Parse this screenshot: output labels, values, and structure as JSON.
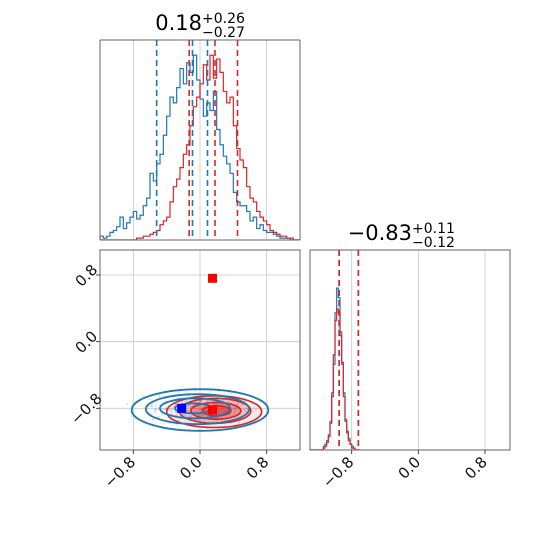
{
  "chart_data": {
    "type": "corner",
    "colors": {
      "blue": "#1f77b4",
      "red": "#d62728",
      "marker_blue": "#0000ff",
      "marker_red": "#ff0000"
    },
    "param_ranges": {
      "x": [
        -1.2,
        1.2
      ],
      "y": [
        -1.3,
        1.1
      ]
    },
    "panels": [
      {
        "id": "hist-x",
        "type": "histogram",
        "title": {
          "median": "0.18",
          "upper": "+0.26",
          "lower": "−0.27"
        },
        "xlim": [
          -1.2,
          1.2
        ],
        "ylim": [
          0,
          1.05
        ],
        "grid": true,
        "bins": {
          "start": -1.2,
          "step": 0.04
        },
        "series": [
          {
            "color": "blue",
            "values": [
              0.02,
              0.01,
              0.02,
              0.04,
              0.05,
              0.07,
              0.12,
              0.06,
              0.09,
              0.12,
              0.15,
              0.11,
              0.13,
              0.18,
              0.22,
              0.35,
              0.31,
              0.4,
              0.45,
              0.55,
              0.65,
              0.75,
              0.72,
              0.8,
              0.9,
              0.82,
              0.93,
              0.88,
              0.97,
              0.84,
              0.74,
              0.65,
              0.72,
              0.68,
              0.78,
              0.58,
              0.5,
              0.44,
              0.4,
              0.35,
              0.25,
              0.2,
              0.18,
              0.18,
              0.15,
              0.1,
              0.12,
              0.06,
              0.08,
              0.05,
              0.04,
              0.04,
              0.03,
              0.02,
              0.01,
              0.01,
              0.01,
              0.0,
              0.0,
              0.0
            ],
            "quantile_lines": [
              -0.52,
              -0.09,
              0.09
            ]
          },
          {
            "color": "red",
            "values": [
              0.0,
              0.0,
              0.0,
              0.0,
              0.0,
              0.0,
              0.0,
              0.0,
              0.0,
              0.0,
              0.0,
              0.01,
              0.01,
              0.02,
              0.02,
              0.03,
              0.04,
              0.05,
              0.08,
              0.1,
              0.12,
              0.2,
              0.28,
              0.32,
              0.38,
              0.45,
              0.5,
              0.6,
              0.7,
              0.75,
              0.82,
              0.92,
              0.84,
              0.97,
              0.85,
              0.95,
              0.88,
              0.78,
              0.72,
              0.75,
              0.6,
              0.48,
              0.42,
              0.38,
              0.28,
              0.22,
              0.2,
              0.15,
              0.12,
              0.1,
              0.08,
              0.05,
              0.04,
              0.03,
              0.02,
              0.02,
              0.01,
              0.01,
              0.0,
              0.0
            ],
            "quantile_lines": [
              -0.13,
              0.18,
              0.45
            ]
          }
        ]
      },
      {
        "id": "scatter-2d",
        "type": "contour",
        "xlim": [
          -1.2,
          1.2
        ],
        "ylim": [
          -1.3,
          1.1
        ],
        "grid": true,
        "x_ticks": [
          -0.8,
          0.0,
          0.8
        ],
        "y_ticks": [
          -0.8,
          0.0,
          0.8
        ],
        "x_tick_labels": [
          "−0.8",
          "0.0",
          "0.8"
        ],
        "y_tick_labels": [
          "−0.8",
          "0.0",
          "0.8"
        ],
        "blue_cloud": {
          "center": [
            -0.05,
            -0.8
          ],
          "spread": [
            0.4,
            0.12
          ]
        },
        "red_cloud": {
          "center": [
            0.18,
            -0.83
          ],
          "spread": [
            0.3,
            0.11
          ]
        },
        "blue_contours": [
          {
            "center": [
              -0.08,
              -0.8
            ],
            "radii": [
              0.22,
              0.06
            ]
          },
          {
            "center": [
              -0.06,
              -0.8
            ],
            "radii": [
              0.42,
              0.12
            ]
          },
          {
            "center": [
              -0.03,
              -0.81
            ],
            "radii": [
              0.62,
              0.18
            ]
          },
          {
            "center": [
              0.0,
              -0.82
            ],
            "radii": [
              0.82,
              0.25
            ]
          }
        ],
        "red_contours": [
          {
            "center": [
              0.2,
              -0.83
            ],
            "radii": [
              0.17,
              0.06
            ],
            "fill_opacity": 0.85
          },
          {
            "center": [
              0.19,
              -0.83
            ],
            "radii": [
              0.3,
              0.1
            ],
            "fill_opacity": 0.55
          },
          {
            "center": [
              0.18,
              -0.83
            ],
            "radii": [
              0.43,
              0.15
            ],
            "fill_opacity": 0.35
          },
          {
            "center": [
              0.17,
              -0.84
            ],
            "radii": [
              0.57,
              0.19
            ],
            "fill_opacity": 0.18
          }
        ],
        "markers": [
          {
            "color": "marker_red",
            "x": 0.15,
            "y": 0.76
          },
          {
            "color": "marker_blue",
            "x": -0.22,
            "y": -0.8
          },
          {
            "color": "marker_red",
            "x": 0.15,
            "y": -0.82
          }
        ]
      },
      {
        "id": "hist-y",
        "type": "histogram",
        "title": {
          "median": "−0.83",
          "upper": "+0.11",
          "lower": "−0.12"
        },
        "xlim": [
          -1.3,
          1.1
        ],
        "ylim": [
          0,
          1.05
        ],
        "grid": true,
        "x_ticks": [
          -0.8,
          0.0,
          0.8
        ],
        "x_tick_labels": [
          "−0.8",
          "0.0",
          "0.8"
        ],
        "bins": {
          "start": -1.3,
          "step": 0.02
        },
        "series": [
          {
            "color": "blue",
            "values": [
              0,
              0,
              0,
              0,
              0,
              0,
              0,
              0,
              0.02,
              0.03,
              0.05,
              0.08,
              0.15,
              0.3,
              0.45,
              0.72,
              0.85,
              0.8,
              0.62,
              0.45,
              0.3,
              0.15,
              0.1,
              0.06,
              0.03,
              0.02,
              0.01,
              0,
              0,
              0
            ],
            "quantile_lines": [
              -0.95,
              -0.72
            ]
          },
          {
            "color": "red",
            "values": [
              0,
              0,
              0,
              0,
              0,
              0,
              0,
              0,
              0.01,
              0.02,
              0.04,
              0.07,
              0.14,
              0.28,
              0.5,
              0.68,
              0.74,
              0.72,
              0.6,
              0.46,
              0.28,
              0.16,
              0.09,
              0.05,
              0.03,
              0.01,
              0.01,
              0,
              0,
              0
            ],
            "quantile_lines": [
              -0.95,
              -0.72
            ]
          }
        ]
      }
    ]
  }
}
